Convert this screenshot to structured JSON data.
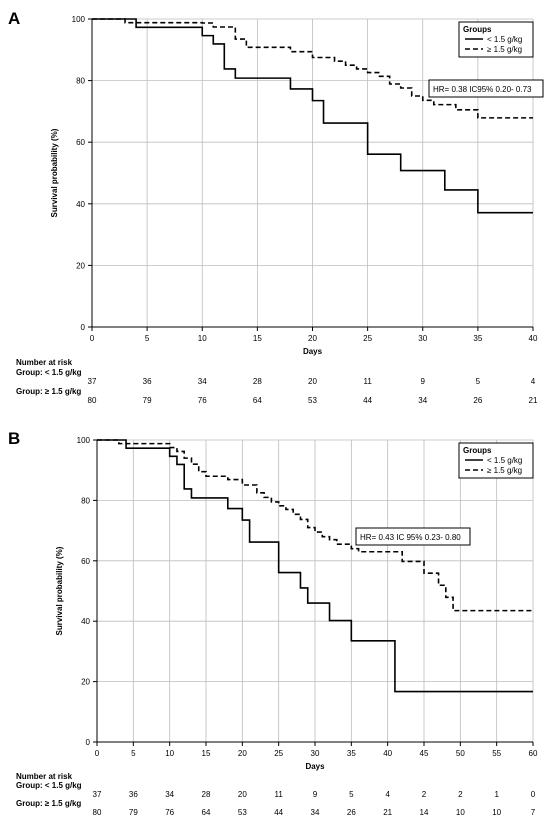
{
  "chart_data": [
    {
      "type": "line",
      "panel_label": "A",
      "xlabel": "Days",
      "ylabel": "Survival probability (%)",
      "xlim": [
        0,
        40
      ],
      "ylim": [
        0,
        100
      ],
      "xticks": [
        0,
        5,
        10,
        15,
        20,
        25,
        30,
        35,
        40
      ],
      "yticks": [
        0,
        20,
        40,
        60,
        80,
        100
      ],
      "grid": true,
      "step": true,
      "legend": {
        "title": "Groups",
        "placement": "top-right",
        "items": [
          {
            "label": "< 1.5 g/kg",
            "style": "solid"
          },
          {
            "label": "≥ 1.5 g/kg",
            "style": "dashed"
          }
        ]
      },
      "annotation": "HR= 0.38 IC95% 0.20- 0.73",
      "series": [
        {
          "name": "< 1.5 g/kg",
          "style": "solid",
          "x": [
            0,
            4,
            10,
            11,
            12,
            13,
            18,
            20,
            21,
            25,
            28,
            32,
            35,
            40
          ],
          "y": [
            100,
            97.3,
            94.6,
            91.9,
            83.8,
            80.8,
            77.3,
            73.5,
            66.2,
            56.1,
            50.8,
            44.5,
            37.1,
            37.1
          ]
        },
        {
          "name": "≥ 1.5 g/kg",
          "style": "dashed",
          "x": [
            0,
            3,
            5,
            10,
            11,
            13,
            14,
            15,
            18,
            20,
            21,
            22,
            23,
            24,
            25,
            26,
            27,
            28,
            29,
            30,
            31,
            33,
            35,
            38,
            40
          ],
          "y": [
            100,
            98.8,
            98.8,
            98.7,
            97.4,
            93.5,
            90.8,
            90.8,
            89.4,
            87.5,
            87.5,
            86.3,
            85.0,
            83.8,
            82.6,
            81.4,
            78.9,
            77.6,
            75.0,
            73.6,
            72.2,
            70.5,
            67.9,
            67.9,
            67.9
          ]
        }
      ],
      "risk_table": {
        "heading": "Number at risk",
        "times": [
          0,
          5,
          10,
          15,
          20,
          25,
          30,
          35,
          40
        ],
        "groups": [
          {
            "label": "Group: < 1.5 g/kg",
            "counts": [
              37,
              36,
              34,
              28,
              20,
              11,
              9,
              5,
              4
            ]
          },
          {
            "label": "Group: ≥ 1.5 g/kg",
            "counts": [
              80,
              79,
              76,
              64,
              53,
              44,
              34,
              26,
              21
            ]
          }
        ]
      }
    },
    {
      "type": "line",
      "panel_label": "B",
      "xlabel": "Days",
      "ylabel": "Survival probability (%)",
      "xlim": [
        0,
        60
      ],
      "ylim": [
        0,
        100
      ],
      "xticks": [
        0,
        5,
        10,
        15,
        20,
        25,
        30,
        35,
        40,
        45,
        50,
        55,
        60
      ],
      "yticks": [
        0,
        20,
        40,
        60,
        80,
        100
      ],
      "grid": true,
      "step": true,
      "legend": {
        "title": "Groups",
        "placement": "top-right",
        "items": [
          {
            "label": "< 1.5 g/kg",
            "style": "solid"
          },
          {
            "label": "≥ 1.5 g/kg",
            "style": "dashed"
          }
        ]
      },
      "annotation": "HR= 0.43 IC 95% 0.23- 0.80",
      "series": [
        {
          "name": "< 1.5 g/kg",
          "style": "solid",
          "x": [
            0,
            4,
            10,
            11,
            12,
            13,
            18,
            20,
            21,
            25,
            28,
            29,
            32,
            35,
            41,
            60
          ],
          "y": [
            100,
            97.3,
            94.6,
            91.9,
            83.8,
            80.8,
            77.3,
            73.5,
            66.2,
            56.1,
            51.0,
            46.0,
            40.2,
            33.5,
            16.7,
            16.7
          ]
        },
        {
          "name": "≥ 1.5 g/kg",
          "style": "dashed",
          "x": [
            0,
            3,
            5,
            10,
            11,
            12,
            13,
            14,
            15,
            18,
            20,
            22,
            23,
            24,
            25,
            26,
            27,
            28,
            29,
            30,
            31,
            32,
            33,
            35,
            36,
            42,
            45,
            46,
            47,
            48,
            49,
            60
          ],
          "y": [
            100,
            98.8,
            98.8,
            97.5,
            96.2,
            94.0,
            92.0,
            89.5,
            88.0,
            86.9,
            85.1,
            82.5,
            81.0,
            79.5,
            78.2,
            77.0,
            75.4,
            73.7,
            71.0,
            69.5,
            68.0,
            67.0,
            65.5,
            64.0,
            63.0,
            59.8,
            55.9,
            55.9,
            51.9,
            47.9,
            43.5,
            43.5
          ]
        }
      ],
      "risk_table": {
        "heading": "Number at risk",
        "times": [
          0,
          5,
          10,
          15,
          20,
          25,
          30,
          35,
          40,
          45,
          50,
          55,
          60
        ],
        "groups": [
          {
            "label": "Group: < 1.5 g/kg",
            "counts": [
              37,
              36,
              34,
              28,
              20,
              11,
              9,
              5,
              4,
              2,
              2,
              1,
              0
            ]
          },
          {
            "label": "Group: ≥ 1.5 g/kg",
            "counts": [
              80,
              79,
              76,
              64,
              53,
              44,
              34,
              26,
              21,
              14,
              10,
              10,
              7
            ]
          }
        ]
      }
    }
  ]
}
